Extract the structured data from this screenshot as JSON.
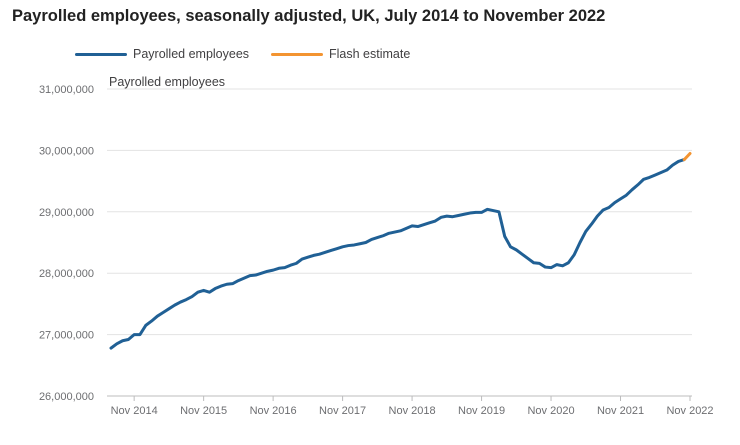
{
  "page": {
    "title": "Payrolled employees, seasonally adjusted, UK, July 2014 to November 2022"
  },
  "chart_data": {
    "type": "line",
    "title": "Payrolled employees, seasonally adjusted, UK, July 2014 to November 2022",
    "xlabel": "",
    "ylabel": "Payrolled employees",
    "ylim": [
      26000000,
      31000000
    ],
    "yticks": [
      26000000,
      27000000,
      28000000,
      29000000,
      30000000,
      31000000
    ],
    "ytick_labels": [
      "26,000,000",
      "27,000,000",
      "28,000,000",
      "29,000,000",
      "30,000,000",
      "31,000,000"
    ],
    "x_start": "Jul 2014",
    "x_end": "Nov 2022",
    "xtick_labels": [
      "Nov 2014",
      "Nov 2015",
      "Nov 2016",
      "Nov 2017",
      "Nov 2018",
      "Nov 2019",
      "Nov 2020",
      "Nov 2021",
      "Nov 2022"
    ],
    "legend_position": "top-left",
    "grid": "horizontal",
    "series": [
      {
        "name": "Payrolled employees",
        "color": "#206095",
        "x": [
          "Jul 2014",
          "Aug 2014",
          "Sep 2014",
          "Oct 2014",
          "Nov 2014",
          "Dec 2014",
          "Jan 2015",
          "Feb 2015",
          "Mar 2015",
          "Apr 2015",
          "May 2015",
          "Jun 2015",
          "Jul 2015",
          "Aug 2015",
          "Sep 2015",
          "Oct 2015",
          "Nov 2015",
          "Dec 2015",
          "Jan 2016",
          "Feb 2016",
          "Mar 2016",
          "Apr 2016",
          "May 2016",
          "Jun 2016",
          "Jul 2016",
          "Aug 2016",
          "Sep 2016",
          "Oct 2016",
          "Nov 2016",
          "Dec 2016",
          "Jan 2017",
          "Feb 2017",
          "Mar 2017",
          "Apr 2017",
          "May 2017",
          "Jun 2017",
          "Jul 2017",
          "Aug 2017",
          "Sep 2017",
          "Oct 2017",
          "Nov 2017",
          "Dec 2017",
          "Jan 2018",
          "Feb 2018",
          "Mar 2018",
          "Apr 2018",
          "May 2018",
          "Jun 2018",
          "Jul 2018",
          "Aug 2018",
          "Sep 2018",
          "Oct 2018",
          "Nov 2018",
          "Dec 2018",
          "Jan 2019",
          "Feb 2019",
          "Mar 2019",
          "Apr 2019",
          "May 2019",
          "Jun 2019",
          "Jul 2019",
          "Aug 2019",
          "Sep 2019",
          "Oct 2019",
          "Nov 2019",
          "Dec 2019",
          "Jan 2020",
          "Feb 2020",
          "Mar 2020",
          "Apr 2020",
          "May 2020",
          "Jun 2020",
          "Jul 2020",
          "Aug 2020",
          "Sep 2020",
          "Oct 2020",
          "Nov 2020",
          "Dec 2020",
          "Jan 2021",
          "Feb 2021",
          "Mar 2021",
          "Apr 2021",
          "May 2021",
          "Jun 2021",
          "Jul 2021",
          "Aug 2021",
          "Sep 2021",
          "Oct 2021",
          "Nov 2021",
          "Dec 2021",
          "Jan 2022",
          "Feb 2022",
          "Mar 2022",
          "Apr 2022",
          "May 2022",
          "Jun 2022",
          "Jul 2022",
          "Aug 2022",
          "Sep 2022",
          "Oct 2022"
        ],
        "values": [
          26780000,
          26850000,
          26900000,
          26920000,
          27000000,
          27000000,
          27150000,
          27220000,
          27300000,
          27360000,
          27420000,
          27480000,
          27530000,
          27570000,
          27620000,
          27690000,
          27720000,
          27690000,
          27750000,
          27790000,
          27820000,
          27830000,
          27880000,
          27920000,
          27960000,
          27970000,
          28000000,
          28030000,
          28050000,
          28080000,
          28090000,
          28130000,
          28160000,
          28230000,
          28260000,
          28290000,
          28310000,
          28340000,
          28370000,
          28400000,
          28430000,
          28450000,
          28460000,
          28480000,
          28500000,
          28550000,
          28580000,
          28610000,
          28650000,
          28670000,
          28690000,
          28730000,
          28770000,
          28760000,
          28790000,
          28820000,
          28850000,
          28910000,
          28930000,
          28920000,
          28940000,
          28960000,
          28980000,
          28990000,
          28990000,
          29040000,
          29020000,
          29000000,
          28600000,
          28430000,
          28380000,
          28310000,
          28240000,
          28170000,
          28160000,
          28100000,
          28090000,
          28140000,
          28120000,
          28170000,
          28300000,
          28500000,
          28680000,
          28800000,
          28930000,
          29030000,
          29070000,
          29150000,
          29210000,
          29270000,
          29360000,
          29440000,
          29530000,
          29560000,
          29600000,
          29640000,
          29680000,
          29760000,
          29820000,
          29850000
        ]
      },
      {
        "name": "Flash estimate",
        "color": "#f66068",
        "x": [
          "Oct 2022",
          "Nov 2022"
        ],
        "values": [
          29850000,
          29950000
        ]
      }
    ]
  }
}
